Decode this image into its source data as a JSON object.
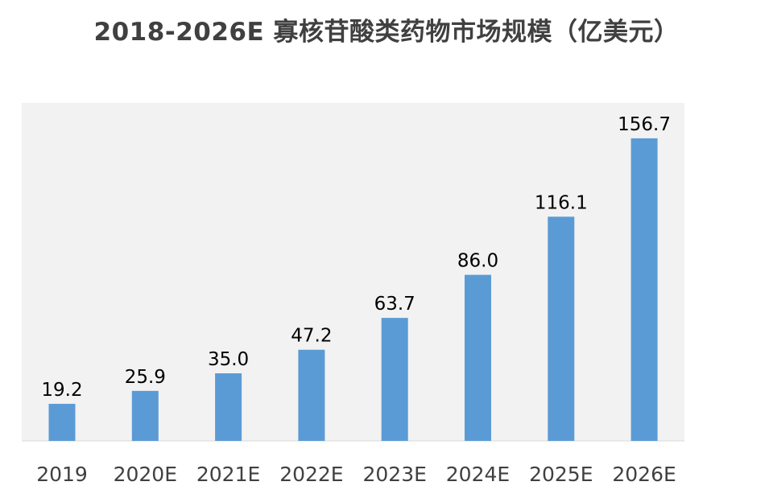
{
  "chart_data": {
    "type": "bar",
    "title": "2018-2026E 寡核苷酸类药物市场规模（亿美元）",
    "xlabel": "",
    "ylabel": "",
    "categories": [
      "2019",
      "2020E",
      "2021E",
      "2022E",
      "2023E",
      "2024E",
      "2025E",
      "2026E"
    ],
    "values": [
      19.2,
      25.9,
      35.0,
      47.2,
      63.7,
      86.0,
      116.1,
      156.7
    ],
    "value_labels": [
      "19.2",
      "25.9",
      "35.0",
      "47.2",
      "63.7",
      "86.0",
      "116.1",
      "156.7"
    ],
    "ylim": [
      0,
      175
    ],
    "grid": false,
    "legend": "none",
    "colors": {
      "bar": "#5b9bd5",
      "plot_background": "#f2f2f2",
      "axis_line": "#d9d9d9",
      "text": "#000000",
      "tick_text": "#404040"
    }
  }
}
